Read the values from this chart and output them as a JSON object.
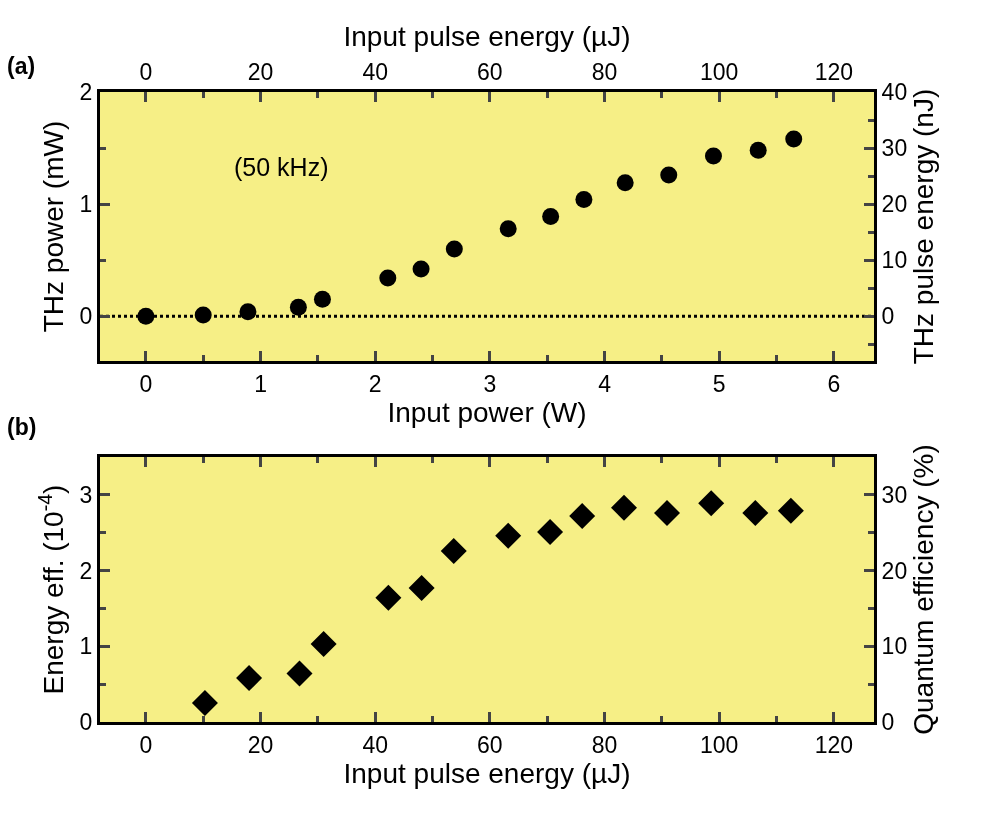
{
  "chart_data": [
    {
      "type": "scatter",
      "xlabel": "Input power (W)",
      "ylabel": "THz power (mW)",
      "y2label": "THz pulse energy (nJ)",
      "x2label": "Input pulse energy (µJ)",
      "annotations": [
        "(a)",
        "(50 kHz)"
      ],
      "x": [
        0,
        0.5,
        0.89,
        1.33,
        1.54,
        2.11,
        2.4,
        2.69,
        3.16,
        3.53,
        3.82,
        4.18,
        4.56,
        4.95,
        5.34,
        5.65
      ],
      "series": [
        {
          "color": "#000000",
          "values": [
            0,
            0.01,
            0.04,
            0.08,
            0.15,
            0.34,
            0.42,
            0.6,
            0.78,
            0.89,
            1.04,
            1.19,
            1.26,
            1.43,
            1.48,
            1.58
          ]
        }
      ],
      "xlim": [
        -0.4,
        6.35
      ],
      "xticks": [
        0,
        1,
        2,
        3,
        4,
        5,
        6
      ],
      "x2lim": [
        -8,
        127
      ],
      "x2ticks": [
        0,
        20,
        40,
        60,
        80,
        100,
        120
      ],
      "ylim": [
        -0.4,
        2
      ],
      "yticks": [
        0,
        1,
        2
      ],
      "y2lim": [
        -8,
        40
      ],
      "y2ticks": [
        0,
        10,
        20,
        30,
        40
      ],
      "ref_lines": [
        {
          "axis": "y",
          "value": 0,
          "color": "#000000",
          "line_style": "dotted"
        }
      ],
      "marker": "circle",
      "grid": false,
      "legend": false
    },
    {
      "type": "scatter",
      "xlabel": "Input pulse energy (µJ)",
      "ylabel": "Energy eff. (10$^{-4}$)",
      "y2label": "Quantum efficiency (%)",
      "annotations": [
        "(b)"
      ],
      "x": [
        10.3,
        18.0,
        26.8,
        31.0,
        42.3,
        48.1,
        53.7,
        63.2,
        70.5,
        76.1,
        83.4,
        90.9,
        98.6,
        106.3,
        112.5
      ],
      "series": [
        {
          "color": "#000000",
          "values": [
            0.25,
            0.58,
            0.64,
            1.03,
            1.64,
            1.77,
            2.26,
            2.46,
            2.51,
            2.72,
            2.83,
            2.76,
            2.89,
            2.76,
            2.79
          ]
        }
      ],
      "xlim": [
        -8,
        127
      ],
      "xticks": [
        0,
        20,
        40,
        60,
        80,
        100,
        120
      ],
      "ylim": [
        0,
        3.5
      ],
      "yticks": [
        0,
        1,
        2,
        3
      ],
      "y2lim": [
        0,
        35
      ],
      "y2ticks": [
        0,
        10,
        20,
        30
      ],
      "marker": "diamond",
      "grid": false,
      "legend": false
    }
  ]
}
